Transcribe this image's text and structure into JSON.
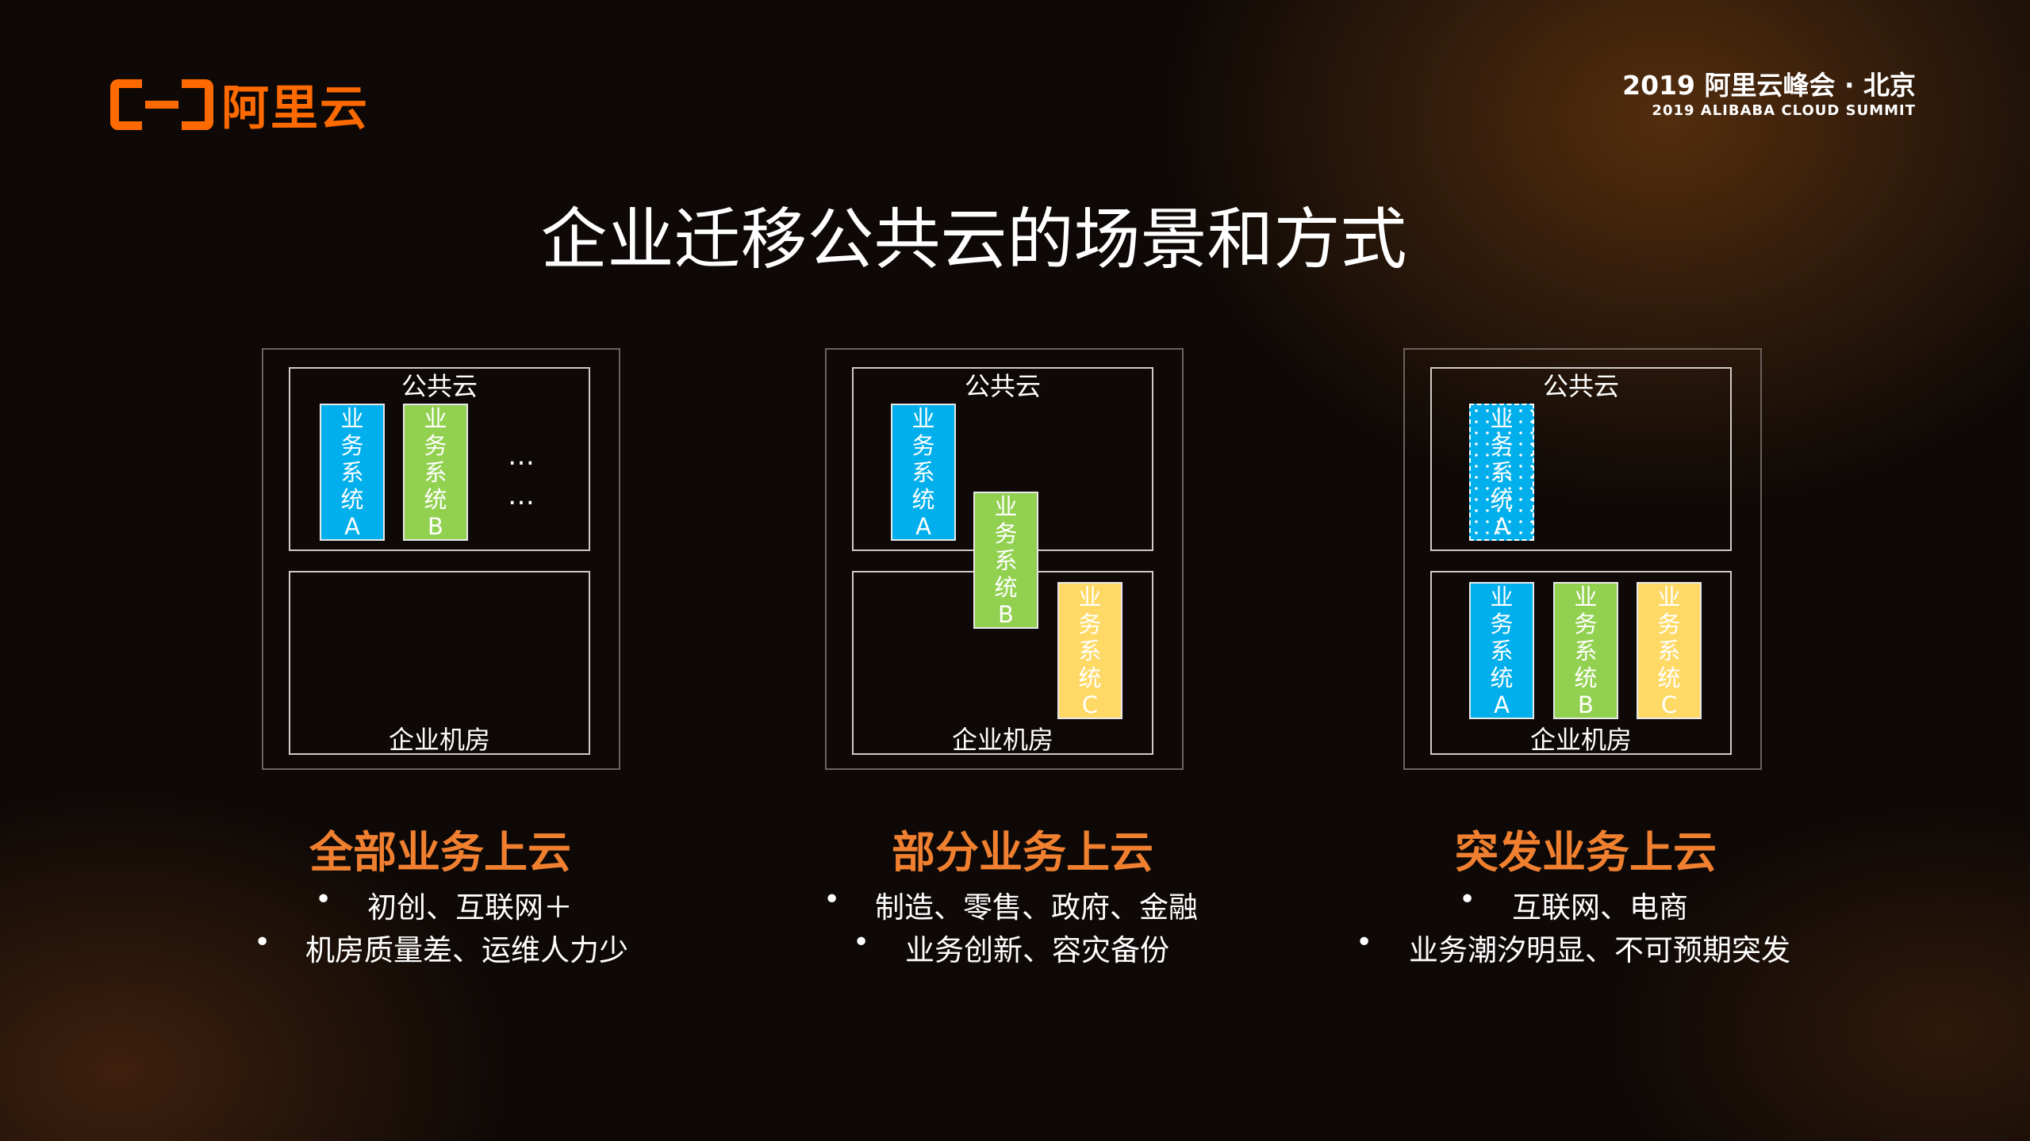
{
  "logo": {
    "text": "阿里云"
  },
  "summit": {
    "line1": "2019 阿里云峰会 · 北京",
    "line2": "2019 ALIBABA CLOUD SUMMIT"
  },
  "title": "企业迁移公共云的场景和方式",
  "colors": {
    "accent": "#f08030",
    "system_a": "#00afec",
    "system_b": "#92d050",
    "system_c": "#ffd966"
  },
  "diagram": {
    "cloud_label": "公共云",
    "onprem_label": "企业机房",
    "ellipsis": "…",
    "sys": {
      "c1": "业",
      "c2": "务",
      "c3": "系",
      "c4": "统",
      "a": "A",
      "b": "B",
      "c": "C"
    }
  },
  "panels": [
    {
      "heading": "全部业务上云",
      "bullets": [
        "初创、互联网＋",
        "机房质量差、运维人力少"
      ]
    },
    {
      "heading": "部分业务上云",
      "bullets": [
        "制造、零售、政府、金融",
        "业务创新、容灾备份"
      ]
    },
    {
      "heading": "突发业务上云",
      "bullets": [
        "互联网、电商",
        "业务潮汐明显、不可预期突发"
      ]
    }
  ],
  "bullet_symbol": "•"
}
